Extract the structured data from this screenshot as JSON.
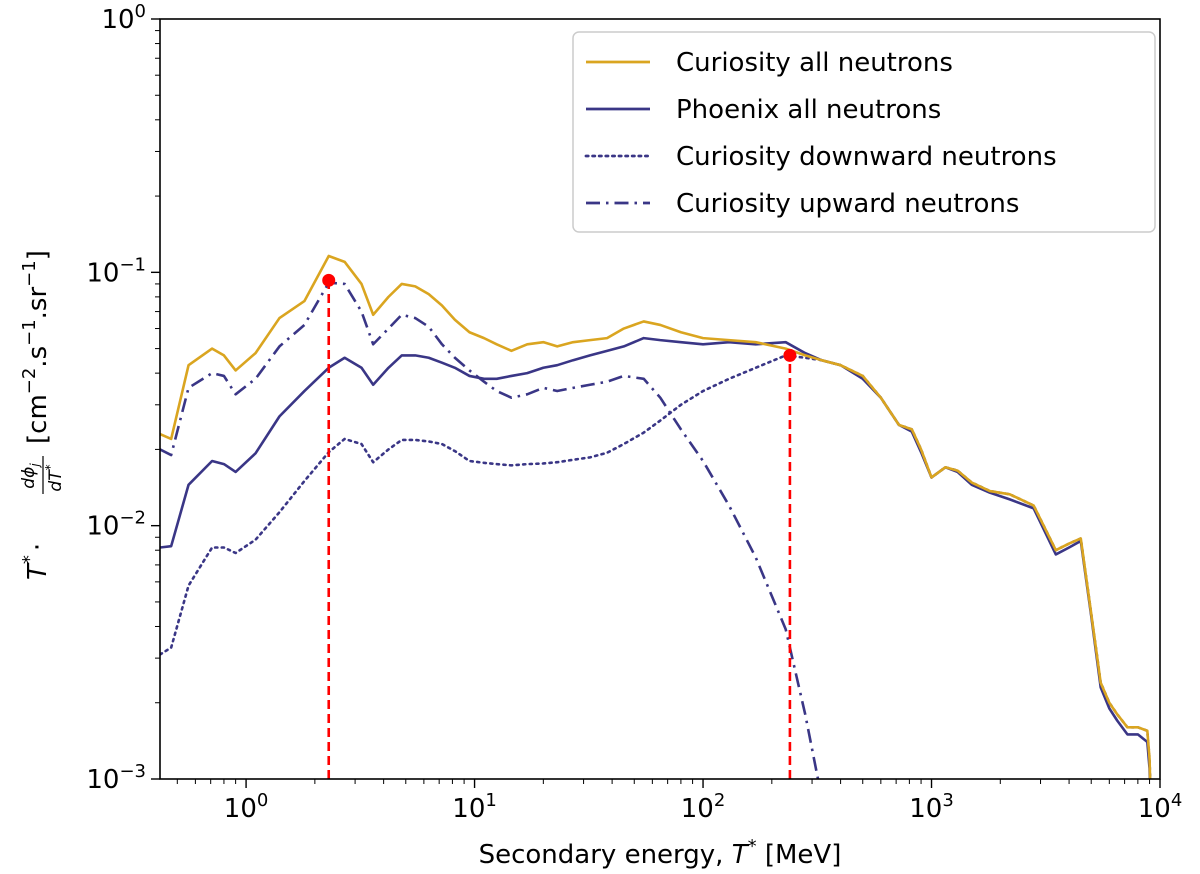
{
  "chart_data": {
    "type": "line",
    "xscale": "log",
    "yscale": "log",
    "xlim": [
      0.42,
      10000
    ],
    "ylim": [
      0.001,
      1
    ],
    "xlabel": {
      "prefix": "Secondary energy, ",
      "var": "T",
      "sup": "*",
      "suffix": " [MeV]"
    },
    "ylabel": {
      "lhs_var": "T",
      "lhs_sup": "*",
      "dot": "·",
      "frac_num": "dϕ",
      "frac_num_sub": "j",
      "frac_den": "dT",
      "frac_den_sup": "*",
      "units_open": "[cm",
      "units_exp1": "−2",
      "units_mid1": ".s",
      "units_exp2": "−1",
      "units_mid2": ".sr",
      "units_exp3": "−1",
      "units_close": "]"
    },
    "x_ticks": [
      {
        "value": 1,
        "base": "10",
        "exp": "0"
      },
      {
        "value": 10,
        "base": "10",
        "exp": "1"
      },
      {
        "value": 100,
        "base": "10",
        "exp": "2"
      },
      {
        "value": 1000,
        "base": "10",
        "exp": "3"
      },
      {
        "value": 10000,
        "base": "10",
        "exp": "4"
      }
    ],
    "y_ticks": [
      {
        "value": 0.001,
        "base": "10",
        "exp": "−3"
      },
      {
        "value": 0.01,
        "base": "10",
        "exp": "−2"
      },
      {
        "value": 0.1,
        "base": "10",
        "exp": "−1"
      },
      {
        "value": 1,
        "base": "10",
        "exp": "0"
      }
    ],
    "legend_position": "top-right",
    "series": [
      {
        "name": "Curiosity all neutrons",
        "color": "#DAA520",
        "style": "solid",
        "x": [
          0.42,
          0.47,
          0.56,
          0.71,
          0.8,
          0.9,
          1.1,
          1.4,
          1.8,
          2.3,
          2.7,
          3.2,
          3.6,
          4.2,
          4.8,
          5.5,
          6.3,
          7.2,
          8.2,
          9.5,
          11,
          12.5,
          14.5,
          17,
          20,
          23,
          27,
          32,
          38,
          45,
          55,
          65,
          80,
          100,
          130,
          170,
          230,
          280,
          330,
          400,
          500,
          600,
          720,
          820,
          900,
          1000,
          1150,
          1300,
          1500,
          1800,
          2200,
          2800,
          3500,
          4000,
          4500,
          5000,
          5500,
          6000,
          6500,
          7200,
          8000,
          8800,
          9000,
          9100
        ],
        "y": [
          0.023,
          0.022,
          0.043,
          0.05,
          0.047,
          0.041,
          0.048,
          0.066,
          0.077,
          0.116,
          0.11,
          0.09,
          0.068,
          0.08,
          0.09,
          0.088,
          0.082,
          0.074,
          0.065,
          0.058,
          0.055,
          0.052,
          0.049,
          0.052,
          0.053,
          0.051,
          0.053,
          0.054,
          0.055,
          0.06,
          0.064,
          0.062,
          0.058,
          0.055,
          0.054,
          0.053,
          0.05,
          0.047,
          0.045,
          0.043,
          0.039,
          0.032,
          0.025,
          0.024,
          0.02,
          0.0155,
          0.017,
          0.0165,
          0.0148,
          0.0137,
          0.0133,
          0.012,
          0.008,
          0.0085,
          0.0089,
          0.0045,
          0.0024,
          0.002,
          0.0018,
          0.0016,
          0.0016,
          0.00155,
          0.0012,
          0.00085
        ]
      },
      {
        "name": "Phoenix all neutrons",
        "color": "#3A3686",
        "style": "solid",
        "x": [
          0.42,
          0.47,
          0.56,
          0.71,
          0.8,
          0.9,
          1.1,
          1.4,
          1.8,
          2.3,
          2.7,
          3.2,
          3.6,
          4.2,
          4.8,
          5.5,
          6.3,
          7.2,
          8.2,
          9.5,
          11,
          12.5,
          14.5,
          17,
          20,
          23,
          27,
          32,
          38,
          45,
          55,
          65,
          80,
          100,
          130,
          170,
          230,
          280,
          330,
          400,
          500,
          600,
          720,
          820,
          900,
          1000,
          1150,
          1300,
          1500,
          1800,
          2200,
          2800,
          3500,
          4000,
          4500,
          5000,
          5500,
          6000,
          6500,
          7200,
          8000,
          8800,
          9000,
          9100
        ],
        "y": [
          0.0082,
          0.0083,
          0.0145,
          0.018,
          0.0175,
          0.0163,
          0.0193,
          0.027,
          0.034,
          0.042,
          0.046,
          0.042,
          0.036,
          0.042,
          0.047,
          0.047,
          0.046,
          0.044,
          0.042,
          0.039,
          0.038,
          0.038,
          0.039,
          0.04,
          0.042,
          0.043,
          0.045,
          0.047,
          0.049,
          0.051,
          0.055,
          0.054,
          0.053,
          0.052,
          0.053,
          0.052,
          0.053,
          0.048,
          0.045,
          0.043,
          0.038,
          0.032,
          0.025,
          0.0235,
          0.0195,
          0.0155,
          0.017,
          0.0163,
          0.0145,
          0.0135,
          0.0127,
          0.0117,
          0.0077,
          0.0082,
          0.0087,
          0.0044,
          0.0023,
          0.0019,
          0.0017,
          0.0015,
          0.0015,
          0.0014,
          0.0011,
          0.0008
        ]
      },
      {
        "name": "Curiosity downward neutrons",
        "color": "#3A3686",
        "style": "dotted",
        "x": [
          0.42,
          0.47,
          0.56,
          0.71,
          0.8,
          0.9,
          1.1,
          1.4,
          1.8,
          2.3,
          2.7,
          3.2,
          3.6,
          4.2,
          4.8,
          5.5,
          6.3,
          7.2,
          8.2,
          9.5,
          11,
          12.5,
          14.5,
          17,
          20,
          23,
          27,
          32,
          38,
          45,
          55,
          65,
          80,
          100,
          130,
          170,
          230,
          280,
          330,
          400,
          500,
          600,
          720,
          820,
          900,
          1000,
          1150,
          1300,
          1500,
          1800,
          2200,
          2800,
          3500,
          4000,
          4500,
          5000,
          5500,
          6000,
          6500,
          7200,
          8000,
          8800,
          9000,
          9100
        ],
        "y": [
          0.0031,
          0.0033,
          0.0058,
          0.0082,
          0.0082,
          0.0078,
          0.0088,
          0.0113,
          0.015,
          0.0195,
          0.022,
          0.021,
          0.0178,
          0.02,
          0.0218,
          0.0218,
          0.0215,
          0.021,
          0.0197,
          0.018,
          0.0177,
          0.0175,
          0.0173,
          0.0175,
          0.0176,
          0.0178,
          0.0182,
          0.0186,
          0.0194,
          0.021,
          0.0233,
          0.026,
          0.03,
          0.034,
          0.038,
          0.042,
          0.047,
          0.046,
          0.045,
          0.043,
          0.039,
          0.032,
          0.025,
          0.024,
          0.02,
          0.0155,
          0.017,
          0.0165,
          0.0148,
          0.0137,
          0.0133,
          0.012,
          0.008,
          0.0085,
          0.0089,
          0.0045,
          0.0024,
          0.002,
          0.0018,
          0.0016,
          0.0016,
          0.00155,
          0.0012,
          0.00085
        ]
      },
      {
        "name": "Curiosity upward neutrons",
        "color": "#3A3686",
        "style": "dashdot",
        "x": [
          0.42,
          0.47,
          0.56,
          0.71,
          0.8,
          0.9,
          1.1,
          1.4,
          1.8,
          2.3,
          2.7,
          3.2,
          3.6,
          4.2,
          4.8,
          5.5,
          6.3,
          7.2,
          8.2,
          9.5,
          11,
          12.5,
          14.5,
          17,
          20,
          23,
          27,
          32,
          38,
          45,
          55,
          65,
          80,
          100,
          130,
          170,
          230,
          280,
          330
        ],
        "y": [
          0.02,
          0.019,
          0.035,
          0.04,
          0.039,
          0.033,
          0.038,
          0.051,
          0.062,
          0.091,
          0.09,
          0.07,
          0.052,
          0.06,
          0.068,
          0.066,
          0.061,
          0.052,
          0.046,
          0.041,
          0.037,
          0.034,
          0.032,
          0.033,
          0.035,
          0.034,
          0.035,
          0.036,
          0.037,
          0.039,
          0.038,
          0.032,
          0.024,
          0.018,
          0.012,
          0.0075,
          0.0039,
          0.0018,
          0.00085
        ]
      }
    ],
    "markers": [
      {
        "x": 2.3,
        "y": 0.093,
        "color": "#FF0000"
      },
      {
        "x": 240,
        "y": 0.047,
        "color": "#FF0000"
      }
    ],
    "vlines": [
      {
        "x": 2.3,
        "y_top": 0.093,
        "color": "#FF0000",
        "style": "dashed"
      },
      {
        "x": 240,
        "y_top": 0.047,
        "color": "#FF0000",
        "style": "dashed"
      }
    ]
  }
}
